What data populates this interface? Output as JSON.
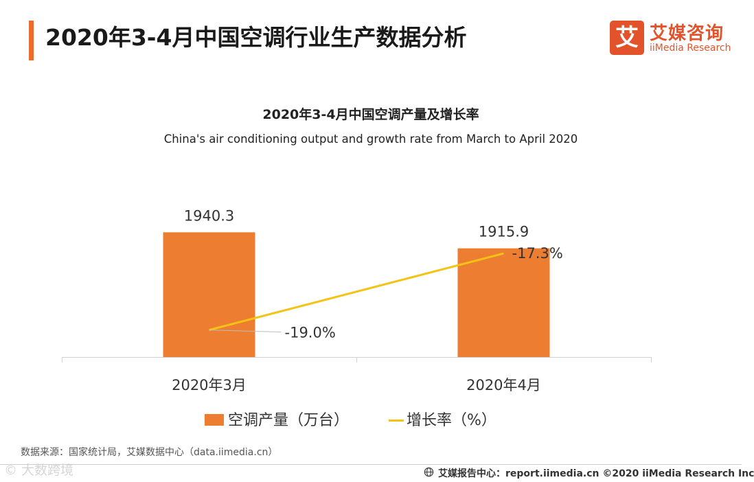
{
  "header": {
    "title": "2020年3-4月中国空调行业生产数据分析",
    "logo_cn": "艾媒咨询",
    "logo_en": "iiMedia Research",
    "logo_glyph": "艾"
  },
  "chart_data": {
    "type": "bar",
    "title": "2020年3-4月中国空调产量及增长率",
    "subtitle": "China's air conditioning output and growth rate from March to April 2020",
    "categories": [
      "2020年3月",
      "2020年4月"
    ],
    "series": [
      {
        "name": "空调产量（万台）",
        "type": "bar",
        "values": [
          1940.3,
          1915.9
        ],
        "labels": [
          "1940.3",
          "1915.9"
        ],
        "color": "#ed7d31"
      },
      {
        "name": "增长率（%）",
        "type": "line",
        "values": [
          -19.0,
          -17.3
        ],
        "labels": [
          "-19.0%",
          "-17.3%"
        ],
        "color": "#f5c216"
      }
    ],
    "bar_axis_range": [
      1750,
      1970
    ],
    "line_axis_range": [
      -19.6,
      -16.4
    ],
    "grid": false,
    "legend_position": "bottom"
  },
  "footer": {
    "source": "数据来源：国家统计局，艾媒数据中心（data.iimedia.cn）",
    "copyright": "艾媒报告中心：report.iimedia.cn  ©2020  iiMedia Research  Inc",
    "watermark": "© 大数跨境"
  },
  "colors": {
    "accent": "#ec6b2d",
    "brand": "#e2532b",
    "bar": "#ed7d31",
    "line": "#f5c216"
  }
}
